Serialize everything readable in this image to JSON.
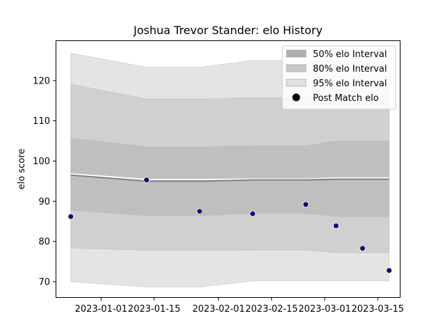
{
  "chart_data": {
    "type": "line",
    "title": "Joshua Trevor Stander: elo History",
    "xlabel": "",
    "ylabel": "elo score",
    "ylim": [
      66.0,
      130.0
    ],
    "yticks": [
      70,
      80,
      90,
      100,
      110,
      120
    ],
    "x_domain": [
      "2022-12-20",
      "2023-03-21"
    ],
    "xticks": [
      {
        "date": "2023-01-01",
        "label": "2023-01-01"
      },
      {
        "date": "2023-01-15",
        "label": "2023-01-15"
      },
      {
        "date": "2023-02-01",
        "label": "2023-02-01"
      },
      {
        "date": "2023-02-15",
        "label": "2023-02-15"
      },
      {
        "date": "2023-03-01",
        "label": "2023-03-01"
      },
      {
        "date": "2023-03-15",
        "label": "2023-03-15"
      }
    ],
    "x": [
      "2022-12-24",
      "2023-01-13",
      "2023-01-27",
      "2023-02-10",
      "2023-02-24",
      "2023-03-04",
      "2023-03-11",
      "2023-03-18"
    ],
    "mean": [
      96.5,
      95.0,
      95.0,
      95.3,
      95.3,
      95.5,
      95.5,
      95.5
    ],
    "mean_upper": [
      96.8,
      95.4,
      95.4,
      95.5,
      95.5,
      95.8,
      95.8,
      95.8
    ],
    "bands": [
      {
        "name": "95% elo Interval",
        "color": "#e4e4e4",
        "lower": [
          70.0,
          68.7,
          68.7,
          70.2,
          70.2,
          70.2,
          70.2,
          70.2
        ],
        "upper": [
          126.8,
          123.3,
          123.3,
          125.0,
          125.0,
          125.0,
          125.0,
          125.0
        ]
      },
      {
        "name": "80% elo Interval",
        "color": "#d0d0d0",
        "lower": [
          78.4,
          77.8,
          77.8,
          77.9,
          77.9,
          77.2,
          77.2,
          77.2
        ],
        "upper": [
          119.1,
          115.4,
          115.4,
          115.8,
          115.8,
          115.8,
          115.8,
          115.8
        ]
      },
      {
        "name": "50% elo Interval",
        "color": "#bfbfbf",
        "lower": [
          87.8,
          86.4,
          86.4,
          87.0,
          87.0,
          86.2,
          86.2,
          86.2
        ],
        "upper": [
          105.7,
          103.5,
          103.5,
          103.8,
          103.8,
          105.0,
          105.0,
          105.0
        ]
      }
    ],
    "series": [
      {
        "name": "Post Match elo",
        "type": "scatter",
        "x": [
          "2022-12-24",
          "2023-01-13",
          "2023-01-27",
          "2023-02-10",
          "2023-02-24",
          "2023-03-04",
          "2023-03-11",
          "2023-03-18"
        ],
        "values": [
          86.2,
          95.3,
          87.5,
          86.9,
          89.2,
          83.9,
          78.3,
          72.8
        ]
      }
    ],
    "legend": {
      "position": "top-right",
      "entries": [
        {
          "label": "50% elo Interval",
          "kind": "patch",
          "color": "#b0b0b0"
        },
        {
          "label": "80% elo Interval",
          "kind": "patch",
          "color": "#c8c8c8"
        },
        {
          "label": "95% elo Interval",
          "kind": "patch",
          "color": "#e0e0e0"
        },
        {
          "label": "Post Match elo",
          "kind": "marker",
          "color": "#000000"
        }
      ]
    },
    "colors": {
      "point_fill": "#0000aa",
      "point_edge": "#ffff66",
      "mean_line": "#808080"
    }
  }
}
